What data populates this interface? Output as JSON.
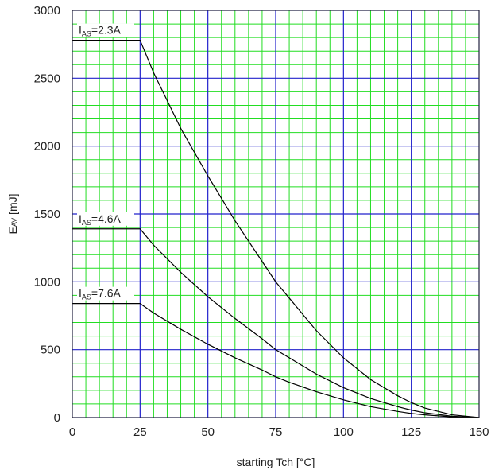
{
  "chart_data": {
    "type": "line",
    "xlabel": "starting Tch [°C]",
    "ylabel": "EAV [mJ]",
    "ylabel_main": "E",
    "ylabel_sub": "AV",
    "ylabel_unit": " [mJ]",
    "xlim": [
      0,
      150
    ],
    "ylim": [
      0,
      3000
    ],
    "x_ticks": [
      0,
      25,
      50,
      75,
      100,
      125,
      150
    ],
    "y_ticks": [
      0,
      500,
      1000,
      1500,
      2000,
      2500,
      3000
    ],
    "x_tick_labels": [
      "0",
      "25",
      "50",
      "75",
      "100",
      "125",
      "150"
    ],
    "y_tick_labels": [
      "0",
      "500",
      "1000",
      "1500",
      "2000",
      "2500",
      "3000"
    ],
    "grid": true,
    "minor_grid_step_x": 5,
    "minor_grid_step_y": 100,
    "colors": {
      "background": "#ffffff",
      "minor_grid": "#22dd22",
      "major_grid": "#2222cc",
      "frame": "#222222",
      "line": "#000000"
    },
    "series": [
      {
        "name": "IAS=2.3A",
        "label_main": "I",
        "label_sub": "AS",
        "label_rest": "=2.3A",
        "x": [
          0,
          25,
          30,
          40,
          50,
          60,
          70,
          75,
          80,
          90,
          100,
          110,
          120,
          125,
          130,
          140,
          150
        ],
        "y": [
          2780,
          2780,
          2540,
          2130,
          1780,
          1450,
          1150,
          1000,
          880,
          640,
          440,
          280,
          160,
          110,
          70,
          20,
          0
        ]
      },
      {
        "name": "IAS=4.6A",
        "label_main": "I",
        "label_sub": "AS",
        "label_rest": "=4.6A",
        "x": [
          0,
          25,
          30,
          40,
          50,
          60,
          70,
          75,
          80,
          90,
          100,
          110,
          120,
          125,
          130,
          140,
          150
        ],
        "y": [
          1390,
          1390,
          1270,
          1070,
          890,
          730,
          580,
          500,
          440,
          320,
          220,
          140,
          80,
          55,
          35,
          10,
          0
        ]
      },
      {
        "name": "IAS=7.6A",
        "label_main": "I",
        "label_sub": "AS",
        "label_rest": "=7.6A",
        "x": [
          0,
          25,
          30,
          40,
          50,
          60,
          70,
          75,
          80,
          90,
          100,
          110,
          120,
          125,
          130,
          140,
          150
        ],
        "y": [
          840,
          840,
          770,
          650,
          540,
          440,
          350,
          300,
          260,
          190,
          130,
          80,
          45,
          30,
          20,
          5,
          0
        ]
      }
    ]
  }
}
